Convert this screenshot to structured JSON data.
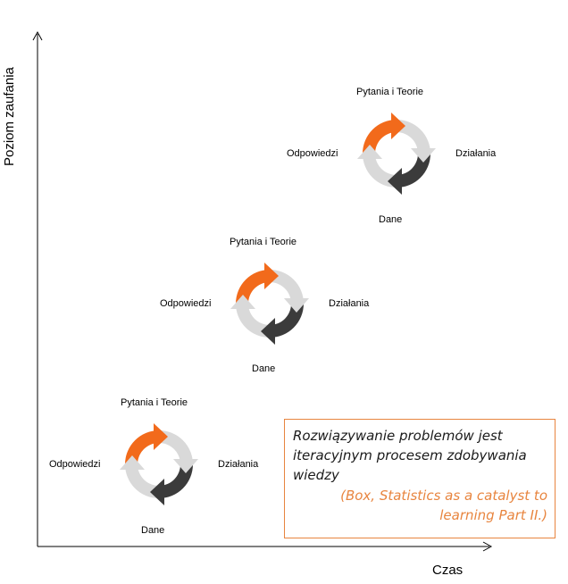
{
  "axes": {
    "y_label": "Poziom zaufania",
    "x_label": "Czas"
  },
  "cycles": [
    {
      "top": "Pytania i Teorie",
      "left": "Odpowiedzi",
      "right": "Działania",
      "bottom": "Dane"
    },
    {
      "top": "Pytania i Teorie",
      "left": "Odpowiedzi",
      "right": "Działania",
      "bottom": "Dane"
    },
    {
      "top": "Pytania i Teorie",
      "left": "Odpowiedzi",
      "right": "Działania",
      "bottom": "Dane"
    }
  ],
  "quote": {
    "text": "Rozwiązywanie problemów jest iteracyjnym  procesem zdobywania wiedzy",
    "source": "(Box, Statistics as a catalyst to learning Part II.)"
  },
  "colors": {
    "orange": "#f26a1b",
    "dark": "#3b3b3b",
    "light": "#d9d9d9",
    "quote_accent": "#e8853f"
  }
}
